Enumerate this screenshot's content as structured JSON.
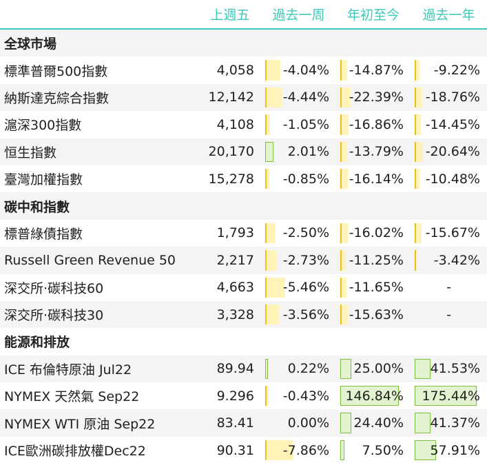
{
  "header": {
    "col1": "上週五",
    "col2": "過去一周",
    "col3": "年初至今",
    "col4": "過去一年"
  },
  "sections": [
    {
      "title": "全球市場",
      "rows": [
        {
          "name": "標準普爾500指數",
          "close": "4,058",
          "week": "-4.04%",
          "ytd": "-14.87%",
          "year": "-9.22%"
        },
        {
          "name": "納斯達克綜合指數",
          "close": "12,142",
          "week": "-4.44%",
          "ytd": "-22.39%",
          "year": "-18.76%"
        },
        {
          "name": "滬深300指數",
          "close": "4,108",
          "week": "-1.05%",
          "ytd": "-16.86%",
          "year": "-14.45%"
        },
        {
          "name": "恒生指數",
          "close": "20,170",
          "week": "2.01%",
          "ytd": "-13.79%",
          "year": "-20.64%"
        },
        {
          "name": "臺灣加權指數",
          "close": "15,278",
          "week": "-0.85%",
          "ytd": "-16.14%",
          "year": "-10.48%"
        }
      ]
    },
    {
      "title": "碳中和指數",
      "rows": [
        {
          "name": "標普綠債指數",
          "close": "1,793",
          "week": "-2.50%",
          "ytd": "-16.02%",
          "year": "-15.67%"
        },
        {
          "name": "Russell Green Revenue 50",
          "close": "2,217",
          "week": "-2.73%",
          "ytd": "-11.25%",
          "year": "-3.42%"
        },
        {
          "name": "深交所·碳科技60",
          "close": "4,663",
          "week": "-5.46%",
          "ytd": "-11.65%",
          "year": "-"
        },
        {
          "name": "深交所·碳科技30",
          "close": "3,328",
          "week": "-3.56%",
          "ytd": "-15.63%",
          "year": "-"
        }
      ]
    },
    {
      "title": "能源和排放",
      "rows": [
        {
          "name": "ICE 布倫特原油 Jul22",
          "close": "89.94",
          "week": "0.22%",
          "ytd": "25.00%",
          "year": "41.53%"
        },
        {
          "name": "NYMEX 天然氣 Sep22",
          "close": "9.296",
          "week": "-0.43%",
          "ytd": "146.84%",
          "year": "175.44%"
        },
        {
          "name": "NYMEX WTI 原油 Sep22",
          "close": "83.41",
          "week": "0.00%",
          "ytd": "24.40%",
          "year": "41.37%"
        },
        {
          "name": "ICE歐洲碳排放權Dec22",
          "close": "90.31",
          "week": "-7.86%",
          "ytd": "7.50%",
          "year": "57.91%"
        }
      ]
    }
  ],
  "colors": {
    "accent": "#3cc8b8",
    "negative_bar": "#f2bd1b",
    "positive_bar": "#7bbf3c"
  }
}
